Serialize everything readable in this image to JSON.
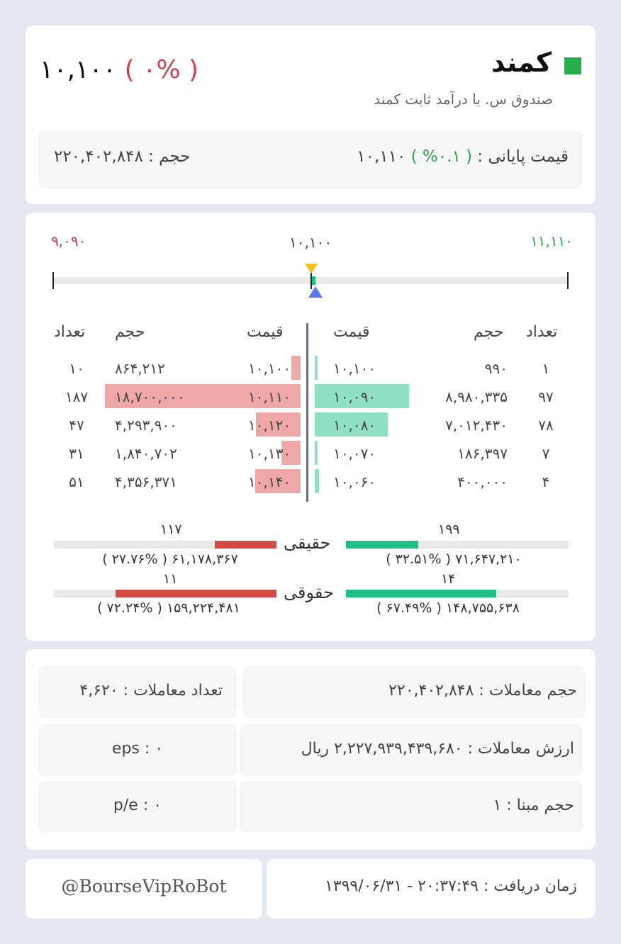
{
  "header": {
    "symbol": "کمند",
    "full_name": "صندوق س. با درآمد ثابت کمند",
    "last_price": "۱۰,۱۰۰",
    "last_change": "( ۰% )",
    "close_label": "قیمت پایانی :",
    "close_value": "۱۰,۱۱۰",
    "close_change": "( ۰.۱% )",
    "volume_label": "حجم :",
    "volume_value": "۲۲۰,۴۰۲,۸۴۸",
    "status_color": "#27ae4b"
  },
  "range": {
    "low": "۹,۰۹۰",
    "mid": "۱۰,۱۰۰",
    "high": "۱۱,۱۱۰",
    "low_value": 9090,
    "high_value": 11110,
    "current_value": 10100,
    "close_value": 10110
  },
  "orderbook": {
    "headers": {
      "count": "تعداد",
      "volume": "حجم",
      "price": "قیمت"
    },
    "sell": [
      {
        "count": "۱۰",
        "volume": "۸۶۴,۲۱۲",
        "price": "۱۰,۱۰۰",
        "volume_value": 864212
      },
      {
        "count": "۱۸۷",
        "volume": "۱۸,۷۰۰,۰۰۰",
        "price": "۱۰,۱۱۰",
        "volume_value": 18700000
      },
      {
        "count": "۴۷",
        "volume": "۴,۲۹۳,۹۰۰",
        "price": "۱۰,۱۲۰",
        "volume_value": 4293900
      },
      {
        "count": "۳۱",
        "volume": "۱,۸۴۰,۷۰۲",
        "price": "۱۰,۱۳۰",
        "volume_value": 1840702
      },
      {
        "count": "۵۱",
        "volume": "۴,۳۵۶,۳۷۱",
        "price": "۱۰,۱۴۰",
        "volume_value": 4356371
      }
    ],
    "buy": [
      {
        "count": "۱",
        "volume": "۹۹۰",
        "price": "۱۰,۱۰۰",
        "volume_value": 990
      },
      {
        "count": "۹۷",
        "volume": "۸,۹۸۰,۳۳۵",
        "price": "۱۰,۰۹۰",
        "volume_value": 8980335
      },
      {
        "count": "۷۸",
        "volume": "۷,۰۱۲,۴۳۰",
        "price": "۱۰,۰۸۰",
        "volume_value": 7012430
      },
      {
        "count": "۷",
        "volume": "۱۸۶,۳۹۷",
        "price": "۱۰,۰۷۰",
        "volume_value": 186397
      },
      {
        "count": "۴",
        "volume": "۴۰۰,۰۰۰",
        "price": "۱۰,۰۶۰",
        "volume_value": 400000
      }
    ]
  },
  "investors": {
    "individual": {
      "label": "حقیقی",
      "sell_count": "۱۱۷",
      "sell_detail": "۶۱,۱۷۸,۳۶۷ ( ۲۷.۷۶% )",
      "sell_percent": 27.76,
      "buy_count": "۱۹۹",
      "buy_detail": "۷۱,۶۴۷,۲۱۰ ( ۳۲.۵۱% )",
      "buy_percent": 32.51
    },
    "legal": {
      "label": "حقوقی",
      "sell_count": "۱۱",
      "sell_detail": "۱۵۹,۲۲۴,۴۸۱ ( ۷۲.۲۴% )",
      "sell_percent": 72.24,
      "buy_count": "۱۴",
      "buy_detail": "۱۴۸,۷۵۵,۶۳۸ ( ۶۷.۴۹% )",
      "buy_percent": 67.49
    }
  },
  "stats": {
    "trade_volume": "حجم معاملات : ۲۲۰,۴۰۲,۸۴۸",
    "trade_count": "تعداد معاملات : ۴,۶۲۰",
    "trade_value": "ارزش معاملات : ۲,۲۲۷,۹۳۹,۴۳۹,۶۸۰ ریال",
    "eps": "eps : ۰",
    "base_volume": "حجم مبنا : ۱",
    "pe": "p/e : ۰"
  },
  "footer": {
    "received_time": "زمان دریافت : ۲۰:۳۷:۴۹ - ۱۳۹۹/۰۶/۳۱",
    "bot_handle": "@BourseVipRoBot"
  }
}
